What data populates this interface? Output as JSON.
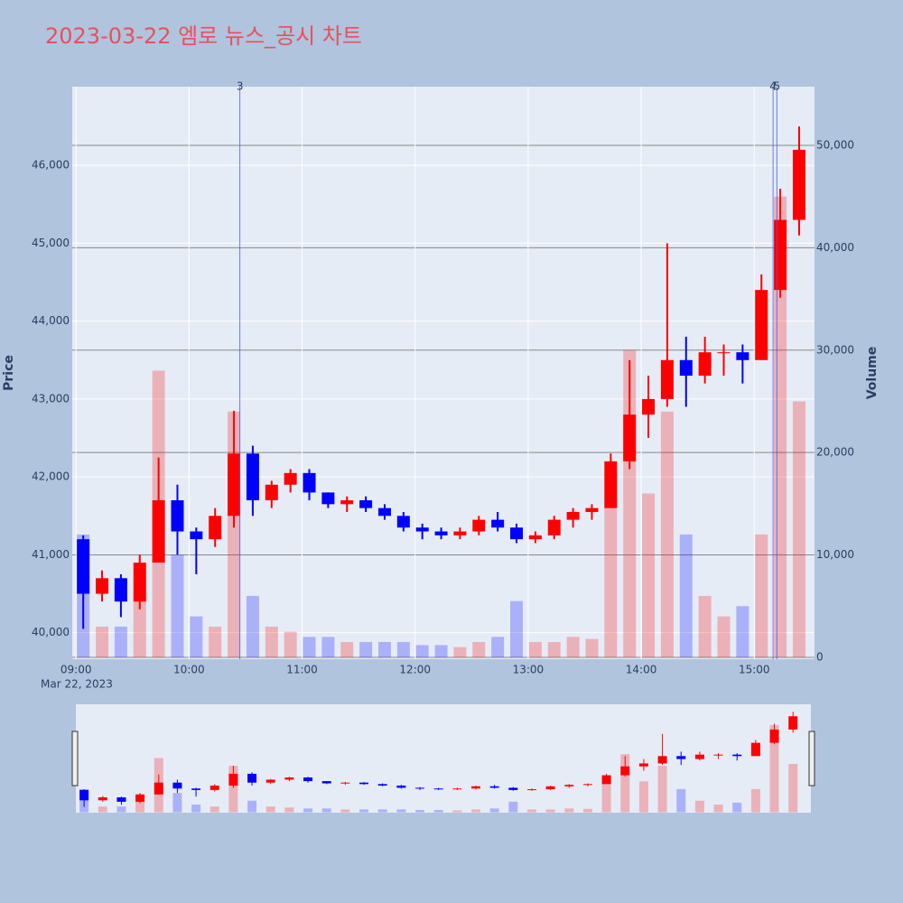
{
  "chart_data": {
    "type": "candlestick",
    "title": "2023-03-22 엠로 뉴스_공시 차트",
    "y_label": "Price",
    "y2_label": "Volume",
    "x_date_label": "Mar 22, 2023",
    "increasing_color": "#ff0000",
    "decreasing_color": "#0000ff",
    "x": [
      "09:00",
      "09:10",
      "09:20",
      "09:30",
      "09:40",
      "09:50",
      "10:00",
      "10:10",
      "10:20",
      "10:30",
      "10:40",
      "10:50",
      "11:00",
      "11:10",
      "11:20",
      "11:30",
      "11:40",
      "11:50",
      "12:00",
      "12:10",
      "12:20",
      "12:30",
      "12:40",
      "12:50",
      "13:00",
      "13:10",
      "13:20",
      "13:30",
      "13:40",
      "13:50",
      "14:00",
      "14:10",
      "14:20",
      "14:30",
      "14:40",
      "14:50",
      "15:00",
      "15:10",
      "15:20"
    ],
    "open": [
      41200,
      40500,
      40700,
      40400,
      40900,
      41700,
      41300,
      41200,
      41500,
      42300,
      41700,
      41900,
      42050,
      41800,
      41650,
      41700,
      41600,
      41500,
      41350,
      41300,
      41250,
      41300,
      41450,
      41350,
      41200,
      41250,
      41450,
      41550,
      41600,
      42200,
      42800,
      43000,
      43500,
      43300,
      43600,
      43600,
      43500,
      44400,
      45300
    ],
    "high": [
      41250,
      40800,
      40750,
      41000,
      42250,
      41900,
      41350,
      41600,
      42850,
      42400,
      41950,
      42100,
      42100,
      41800,
      41750,
      41750,
      41650,
      41550,
      41400,
      41350,
      41350,
      41500,
      41550,
      41400,
      41300,
      41500,
      41600,
      41650,
      42300,
      43500,
      43300,
      45000,
      43800,
      43800,
      43700,
      43700,
      44600,
      45700,
      46500
    ],
    "low": [
      40050,
      40400,
      40200,
      40300,
      40900,
      41000,
      40750,
      41100,
      41350,
      41500,
      41600,
      41800,
      41700,
      41600,
      41550,
      41550,
      41450,
      41300,
      41200,
      41200,
      41200,
      41250,
      41300,
      41150,
      41150,
      41200,
      41350,
      41450,
      41600,
      42100,
      42500,
      42900,
      42900,
      43200,
      43300,
      43200,
      43500,
      44300,
      45100
    ],
    "close": [
      40500,
      40700,
      40400,
      40900,
      41700,
      41300,
      41200,
      41500,
      42300,
      41700,
      41900,
      42050,
      41800,
      41650,
      41700,
      41600,
      41500,
      41350,
      41300,
      41250,
      41300,
      41450,
      41350,
      41200,
      41250,
      41450,
      41550,
      41600,
      42200,
      42800,
      43000,
      43500,
      43300,
      43600,
      43600,
      43500,
      44400,
      45300,
      46200
    ],
    "volume": [
      12000,
      3000,
      3000,
      6000,
      28000,
      10000,
      4000,
      3000,
      24000,
      6000,
      3000,
      2500,
      2000,
      2000,
      1500,
      1500,
      1500,
      1500,
      1200,
      1200,
      1000,
      1500,
      2000,
      5500,
      1500,
      1500,
      2000,
      1800,
      18000,
      30000,
      16000,
      24000,
      12000,
      6000,
      4000,
      5000,
      12000,
      45000,
      25000
    ],
    "annotations": [
      {
        "x": "10:27",
        "text": "3"
      },
      {
        "x": "15:10",
        "text": "4"
      },
      {
        "x": "15:12",
        "text": "5"
      }
    ],
    "xlim": [
      "08:58",
      "15:32"
    ],
    "xticks": [
      "09:00",
      "10:00",
      "11:00",
      "12:00",
      "13:00",
      "14:00",
      "15:00"
    ],
    "ylim": [
      39660,
      47010
    ],
    "yticks": [
      {
        "value": 40000,
        "label": "40,000"
      },
      {
        "value": 41000,
        "label": "41,000"
      },
      {
        "value": 42000,
        "label": "42,000"
      },
      {
        "value": 43000,
        "label": "43,000"
      },
      {
        "value": 44000,
        "label": "44,000"
      },
      {
        "value": 45000,
        "label": "45,000"
      },
      {
        "value": 46000,
        "label": "46,000"
      }
    ],
    "y2lim": [
      -180,
      55730
    ],
    "y2ticks": [
      0,
      {
        "value": 10000,
        "label": "10,000"
      },
      {
        "value": 20000,
        "label": "20,000"
      },
      {
        "value": 30000,
        "label": "30,000"
      },
      {
        "value": 40000,
        "label": "40,000"
      },
      {
        "value": 50000,
        "label": "50,000"
      }
    ],
    "grid": true
  }
}
